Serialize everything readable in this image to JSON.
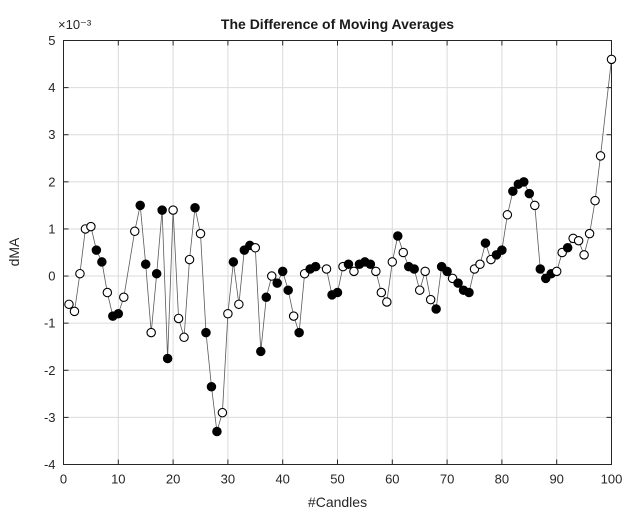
{
  "title": "The Difference of Moving Averages",
  "xlabel": "#Candles",
  "ylabel": "dMA",
  "exponent_label": "×10⁻³",
  "colors": {
    "axis": "#262626",
    "grid": "#dbdbdb",
    "line": "#5a5a5a",
    "marker_edge": "#000000",
    "marker_fill": "#000000",
    "marker_open_fill": "#ffffff",
    "background": "#ffffff"
  },
  "chart_data": {
    "type": "line",
    "title": "The Difference of Moving Averages",
    "xlabel": "#Candles",
    "ylabel": "dMA",
    "y_scale": "1e-3",
    "xlim": [
      0,
      100
    ],
    "ylim": [
      -4,
      5
    ],
    "xticks": [
      0,
      10,
      20,
      30,
      40,
      50,
      60,
      70,
      80,
      90,
      100
    ],
    "yticks": [
      -4,
      -3,
      -2,
      -1,
      0,
      1,
      2,
      3,
      4,
      5
    ],
    "grid": true,
    "legend": "none",
    "marker_styles": [
      "filled",
      "open"
    ],
    "x": [
      1,
      2,
      3,
      4,
      5,
      6,
      7,
      8,
      9,
      10,
      11,
      13,
      14,
      15,
      16,
      17,
      18,
      19,
      20,
      21,
      22,
      23,
      24,
      25,
      26,
      27,
      28,
      29,
      30,
      31,
      32,
      33,
      34,
      35,
      36,
      37,
      38,
      39,
      40,
      41,
      42,
      43,
      44,
      45,
      46,
      48,
      49,
      50,
      51,
      52,
      53,
      54,
      55,
      56,
      57,
      58,
      59,
      60,
      61,
      62,
      63,
      64,
      65,
      66,
      67,
      68,
      69,
      70,
      71,
      72,
      73,
      74,
      75,
      76,
      77,
      78,
      79,
      80,
      81,
      82,
      83,
      84,
      85,
      86,
      87,
      88,
      89,
      90,
      91,
      92,
      93,
      94,
      95,
      96,
      97,
      98,
      100
    ],
    "y": [
      -0.6,
      -0.75,
      0.05,
      1.0,
      1.05,
      0.55,
      0.3,
      -0.35,
      -0.85,
      -0.8,
      -0.45,
      0.95,
      1.5,
      0.25,
      -1.2,
      0.05,
      1.4,
      -1.75,
      1.4,
      -0.9,
      -1.3,
      0.35,
      1.45,
      0.9,
      -1.2,
      -2.35,
      -3.3,
      -2.9,
      -0.8,
      0.3,
      -0.6,
      0.55,
      0.65,
      0.6,
      -1.6,
      -0.45,
      0.0,
      -0.15,
      0.1,
      -0.3,
      -0.85,
      -1.2,
      0.05,
      0.15,
      0.2,
      0.15,
      -0.4,
      -0.35,
      0.2,
      0.25,
      0.1,
      0.25,
      0.3,
      0.25,
      0.1,
      -0.35,
      -0.55,
      0.3,
      0.85,
      0.5,
      0.2,
      0.15,
      -0.3,
      0.1,
      -0.5,
      -0.7,
      0.2,
      0.1,
      -0.05,
      -0.15,
      -0.3,
      -0.35,
      0.15,
      0.25,
      0.7,
      0.35,
      0.45,
      0.55,
      1.3,
      1.8,
      1.95,
      2.0,
      1.75,
      1.5,
      0.15,
      -0.05,
      0.05,
      0.1,
      0.5,
      0.6,
      0.8,
      0.75,
      0.45,
      0.9,
      1.6,
      2.55,
      4.6
    ],
    "markers": [
      "open",
      "open",
      "open",
      "open",
      "open",
      "filled",
      "filled",
      "open",
      "filled",
      "filled",
      "open",
      "open",
      "filled",
      "filled",
      "open",
      "filled",
      "filled",
      "filled",
      "open",
      "open",
      "open",
      "open",
      "filled",
      "open",
      "filled",
      "filled",
      "filled",
      "open",
      "open",
      "filled",
      "open",
      "filled",
      "filled",
      "open",
      "filled",
      "filled",
      "open",
      "filled",
      "filled",
      "filled",
      "open",
      "filled",
      "open",
      "filled",
      "filled",
      "open",
      "filled",
      "filled",
      "open",
      "filled",
      "open",
      "filled",
      "filled",
      "filled",
      "open",
      "open",
      "open",
      "open",
      "filled",
      "open",
      "filled",
      "filled",
      "open",
      "open",
      "open",
      "filled",
      "filled",
      "filled",
      "open",
      "filled",
      "filled",
      "filled",
      "open",
      "open",
      "filled",
      "open",
      "filled",
      "filled",
      "open",
      "filled",
      "filled",
      "filled",
      "filled",
      "open",
      "filled",
      "filled",
      "filled",
      "open",
      "open",
      "filled",
      "open",
      "open",
      "open",
      "open",
      "open",
      "open",
      "open"
    ]
  }
}
